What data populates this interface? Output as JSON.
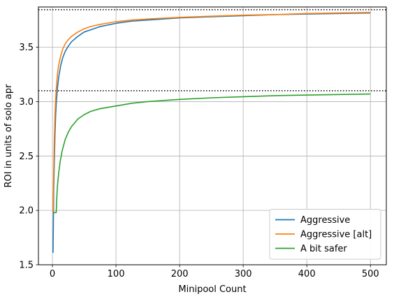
{
  "chart_data": {
    "type": "line",
    "title": "",
    "xlabel": "Minipool Count",
    "ylabel": "ROI in units of solo apr",
    "xlim": [
      -22,
      525
    ],
    "ylim": [
      1.5,
      3.87
    ],
    "xticks": [
      0,
      100,
      200,
      300,
      400,
      500
    ],
    "xtick_labels": [
      "0",
      "100",
      "200",
      "300",
      "400",
      "500"
    ],
    "yticks": [
      1.5,
      2.0,
      2.5,
      3.0,
      3.5
    ],
    "ytick_labels": [
      "1.5",
      "2.0",
      "2.5",
      "3.0",
      "3.5"
    ],
    "grid": true,
    "legend_position": "lower-right",
    "reference_lines": [
      {
        "y": 3.845,
        "style": "dotted",
        "color": "#000000"
      },
      {
        "y": 3.1,
        "style": "dotted",
        "color": "#000000"
      }
    ],
    "series": [
      {
        "name": "Aggressive",
        "color": "#1f77b4",
        "x": [
          1,
          2,
          3,
          4,
          5,
          6,
          8,
          10,
          13,
          16,
          20,
          25,
          30,
          40,
          50,
          60,
          75,
          100,
          125,
          150,
          200,
          250,
          300,
          350,
          400,
          450,
          500
        ],
        "y": [
          1.61,
          2.17,
          2.45,
          2.69,
          2.86,
          2.98,
          3.13,
          3.23,
          3.33,
          3.4,
          3.46,
          3.51,
          3.55,
          3.6,
          3.64,
          3.66,
          3.69,
          3.72,
          3.74,
          3.75,
          3.77,
          3.78,
          3.79,
          3.8,
          3.805,
          3.81,
          3.815
        ]
      },
      {
        "name": "Aggressive [alt]",
        "color": "#ff7f0e",
        "x": [
          1,
          2,
          3,
          4,
          5,
          6,
          8,
          10,
          13,
          16,
          20,
          25,
          30,
          40,
          50,
          60,
          75,
          100,
          125,
          150,
          200,
          250,
          300,
          350,
          400,
          450,
          500
        ],
        "y": [
          1.98,
          2.35,
          2.66,
          2.88,
          3.01,
          3.11,
          3.26,
          3.34,
          3.42,
          3.48,
          3.53,
          3.57,
          3.6,
          3.64,
          3.67,
          3.69,
          3.71,
          3.735,
          3.75,
          3.76,
          3.775,
          3.785,
          3.795,
          3.8,
          3.81,
          3.815,
          3.82
        ]
      },
      {
        "name": "A bit safer",
        "color": "#2ca02c",
        "x": [
          1,
          2,
          3,
          4,
          5,
          6,
          7,
          8,
          10,
          12,
          15,
          20,
          25,
          30,
          40,
          50,
          60,
          75,
          100,
          125,
          150,
          200,
          250,
          300,
          350,
          400,
          450,
          500
        ],
        "y": [
          1.98,
          1.98,
          1.98,
          1.98,
          1.98,
          1.98,
          2.13,
          2.23,
          2.35,
          2.44,
          2.54,
          2.65,
          2.72,
          2.77,
          2.84,
          2.88,
          2.91,
          2.935,
          2.96,
          2.985,
          3.0,
          3.02,
          3.035,
          3.045,
          3.055,
          3.06,
          3.065,
          3.07
        ]
      }
    ]
  }
}
